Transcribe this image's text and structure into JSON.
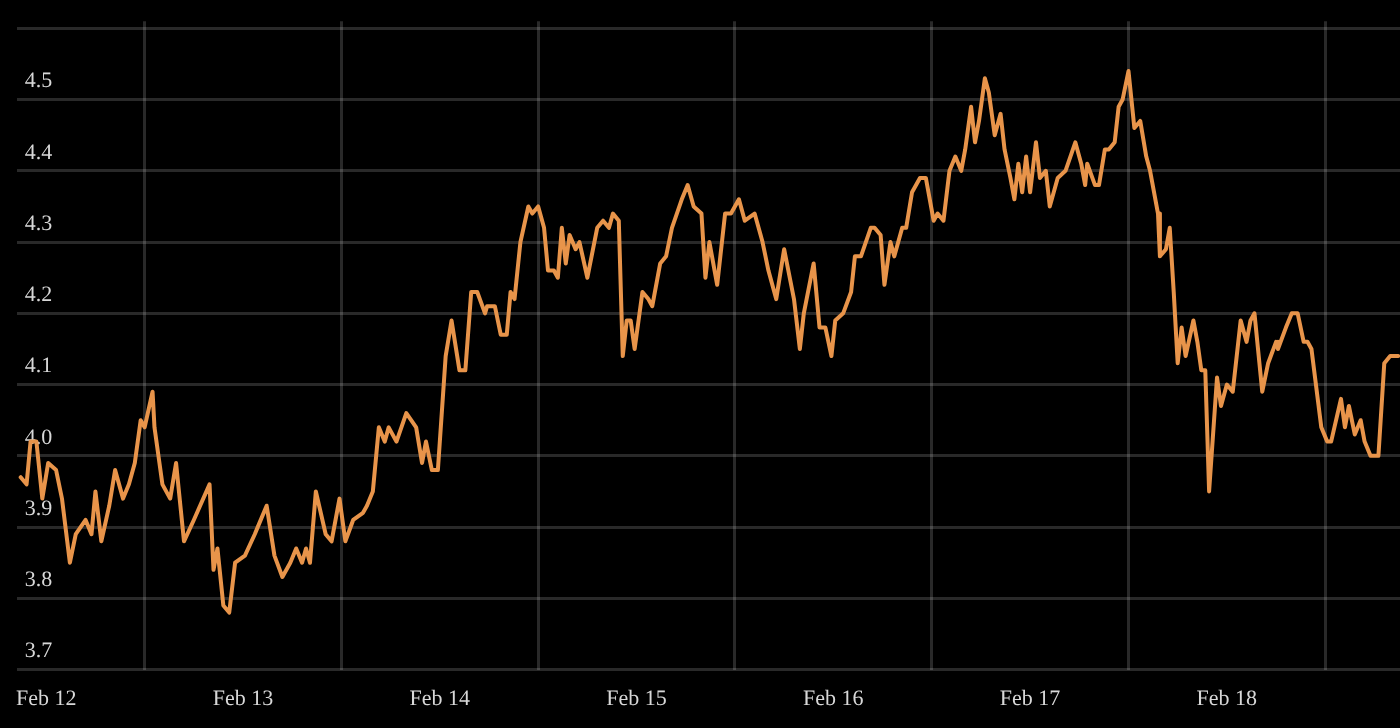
{
  "chart_data": {
    "type": "line",
    "x": [
      "--02-11T20:53",
      "--02-11T21:36",
      "--02-11T22:05",
      "--02-11T22:48",
      "--02-11T23:31",
      "--02-12T00:14",
      "--02-12T01:12",
      "--02-12T01:55",
      "--02-12T02:53",
      "--02-12T03:36",
      "--02-12T04:48",
      "--02-12T05:31",
      "--02-12T06:00",
      "--02-12T06:43",
      "--02-12T07:41",
      "--02-12T08:24",
      "--02-12T09:22",
      "--02-12T10:05",
      "--02-12T10:48",
      "--02-12T11:31",
      "--02-12T12:00",
      "--02-12T12:58",
      "--02-12T13:12",
      "--02-12T14:10",
      "--02-12T15:07",
      "--02-12T15:50",
      "--02-12T16:48",
      "--02-12T18:00",
      "--02-12T19:55",
      "--02-12T20:24",
      "--02-12T20:53",
      "--02-12T21:36",
      "--02-12T22:19",
      "--02-12T23:02",
      "--02-13T00:14",
      "--02-13T01:26",
      "--02-13T02:53",
      "--02-13T03:50",
      "--02-13T04:48",
      "--02-13T05:46",
      "--02-13T06:29",
      "--02-13T07:12",
      "--02-13T07:41",
      "--02-13T08:10",
      "--02-13T08:53",
      "--02-13T10:05",
      "--02-13T10:48",
      "--02-13T11:46",
      "--02-13T12:29",
      "--02-13T13:26",
      "--02-13T14:38",
      "--02-13T15:07",
      "--02-13T15:50",
      "--02-13T16:34",
      "--02-13T17:17",
      "--02-13T17:46",
      "--02-13T18:43",
      "--02-13T19:55",
      "--02-13T21:07",
      "--02-13T21:50",
      "--02-13T22:19",
      "--02-13T23:02",
      "--02-13T23:46",
      "--02-14T00:43",
      "--02-14T01:26",
      "--02-14T02:24",
      "--02-14T03:07",
      "--02-14T03:50",
      "--02-14T04:34",
      "--02-14T05:31",
      "--02-14T05:46",
      "--02-14T06:43",
      "--02-14T07:26",
      "--02-14T08:10",
      "--02-14T08:38",
      "--02-14T09:07",
      "--02-14T09:50",
      "--02-14T10:48",
      "--02-14T11:17",
      "--02-14T12:00",
      "--02-14T12:43",
      "--02-14T13:12",
      "--02-14T13:55",
      "--02-14T14:24",
      "--02-14T14:53",
      "--02-14T15:22",
      "--02-14T15:50",
      "--02-14T16:34",
      "--02-14T17:02",
      "--02-14T18:00",
      "--02-14T19:12",
      "--02-14T19:55",
      "--02-14T20:38",
      "--02-14T21:07",
      "--02-14T21:50",
      "--02-14T22:19",
      "--02-14T22:48",
      "--02-14T23:17",
      "--02-14T23:46",
      "--02-15T00:43",
      "--02-15T01:26",
      "--02-15T01:55",
      "--02-15T02:53",
      "--02-15T03:36",
      "--02-15T04:19",
      "--02-15T05:31",
      "--02-15T06:14",
      "--02-15T06:58",
      "--02-15T07:55",
      "--02-15T08:24",
      "--02-15T08:53",
      "--02-15T09:50",
      "--02-15T10:48",
      "--02-15T11:31",
      "--02-15T12:29",
      "--02-15T13:12",
      "--02-15T14:24",
      "--02-15T15:22",
      "--02-15T16:05",
      "--02-15T17:02",
      "--02-15T18:00",
      "--02-15T19:12",
      "--02-15T19:55",
      "--02-15T20:24",
      "--02-15T21:36",
      "--02-15T22:19",
      "--02-15T23:02",
      "--02-15T23:46",
      "--02-16T00:14",
      "--02-16T01:12",
      "--02-16T02:10",
      "--02-16T02:38",
      "--02-16T03:22",
      "--02-16T04:34",
      "--02-16T05:02",
      "--02-16T05:46",
      "--02-16T06:14",
      "--02-16T06:58",
      "--02-16T07:26",
      "--02-16T08:24",
      "--02-16T08:53",
      "--02-16T09:36",
      "--02-16T10:34",
      "--02-16T11:17",
      "--02-16T12:14",
      "--02-16T12:43",
      "--02-16T13:26",
      "--02-16T14:10",
      "--02-16T14:53",
      "--02-16T15:36",
      "--02-16T16:05",
      "--02-16T16:48",
      "--02-16T17:17",
      "--02-16T17:46",
      "--02-16T18:29",
      "--02-16T18:58",
      "--02-16T19:41",
      "--02-16T20:24",
      "--02-16T20:53",
      "--02-16T21:36",
      "--02-16T22:05",
      "--02-16T22:34",
      "--02-16T23:02",
      "--02-16T23:31",
      "--02-17T00:00",
      "--02-17T00:43",
      "--02-17T01:12",
      "--02-17T01:55",
      "--02-17T02:24",
      "--02-17T03:22",
      "--02-17T04:19",
      "--02-17T05:31",
      "--02-17T06:14",
      "--02-17T06:43",
      "--02-17T06:58",
      "--02-17T07:55",
      "--02-17T08:24",
      "--02-17T09:07",
      "--02-17T09:36",
      "--02-17T10:19",
      "--02-17T10:48",
      "--02-17T11:17",
      "--02-17T12:00",
      "--02-17T12:43",
      "--02-17T13:26",
      "--02-17T14:10",
      "--02-17T14:38",
      "--02-17T15:36",
      "--02-17T15:50",
      "--02-17T16:34",
      "--02-17T17:02",
      "--02-17T17:31",
      "--02-17T18:00",
      "--02-17T18:29",
      "--02-17T18:58",
      "--02-17T19:55",
      "--02-17T20:24",
      "--02-17T20:53",
      "--02-17T21:22",
      "--02-17T21:50",
      "--02-17T22:48",
      "--02-17T23:17",
      "--02-18T00:00",
      "--02-18T00:43",
      "--02-18T01:41",
      "--02-18T02:24",
      "--02-18T02:53",
      "--02-18T03:22",
      "--02-18T04:19",
      "--02-18T05:02",
      "--02-18T06:00",
      "--02-18T06:14",
      "--02-18T07:12",
      "--02-18T07:55",
      "--02-18T08:38",
      "--02-18T09:22",
      "--02-18T09:50",
      "--02-18T10:19",
      "--02-18T11:31",
      "--02-18T12:14",
      "--02-18T12:43",
      "--02-18T13:55",
      "--02-18T14:24",
      "--02-18T14:53",
      "--02-18T15:36",
      "--02-18T16:19",
      "--02-18T16:48",
      "--02-18T17:31",
      "--02-18T18:29",
      "--02-18T19:12",
      "--02-18T19:55",
      "--02-18T20:53"
    ],
    "series": [
      {
        "color": "#e8944a",
        "values": [
          3.97,
          3.96,
          4.02,
          4.02,
          3.94,
          3.99,
          3.98,
          3.94,
          3.85,
          3.89,
          3.91,
          3.89,
          3.95,
          3.88,
          3.93,
          3.98,
          3.94,
          3.96,
          3.99,
          4.05,
          4.04,
          4.09,
          4.04,
          3.96,
          3.94,
          3.99,
          3.88,
          3.91,
          3.96,
          3.84,
          3.87,
          3.79,
          3.78,
          3.85,
          3.86,
          3.89,
          3.93,
          3.86,
          3.83,
          3.85,
          3.87,
          3.85,
          3.87,
          3.85,
          3.95,
          3.89,
          3.88,
          3.94,
          3.88,
          3.91,
          3.92,
          3.93,
          3.95,
          4.04,
          4.02,
          4.04,
          4.02,
          4.06,
          4.04,
          3.99,
          4.02,
          3.98,
          3.98,
          4.14,
          4.19,
          4.12,
          4.12,
          4.23,
          4.23,
          4.2,
          4.21,
          4.21,
          4.17,
          4.17,
          4.23,
          4.22,
          4.3,
          4.35,
          4.34,
          4.35,
          4.32,
          4.26,
          4.26,
          4.25,
          4.32,
          4.27,
          4.31,
          4.29,
          4.3,
          4.25,
          4.32,
          4.33,
          4.32,
          4.34,
          4.33,
          4.14,
          4.19,
          4.19,
          4.15,
          4.23,
          4.22,
          4.21,
          4.27,
          4.28,
          4.32,
          4.36,
          4.38,
          4.35,
          4.34,
          4.25,
          4.3,
          4.24,
          4.34,
          4.34,
          4.36,
          4.33,
          4.34,
          4.3,
          4.26,
          4.22,
          4.29,
          4.22,
          4.15,
          4.2,
          4.27,
          4.18,
          4.18,
          4.14,
          4.19,
          4.2,
          4.23,
          4.28,
          4.28,
          4.32,
          4.32,
          4.31,
          4.24,
          4.3,
          4.28,
          4.32,
          4.32,
          4.37,
          4.39,
          4.39,
          4.33,
          4.34,
          4.33,
          4.4,
          4.42,
          4.4,
          4.43,
          4.49,
          4.44,
          4.47,
          4.53,
          4.51,
          4.45,
          4.48,
          4.43,
          4.39,
          4.36,
          4.41,
          4.37,
          4.42,
          4.37,
          4.44,
          4.39,
          4.4,
          4.35,
          4.39,
          4.4,
          4.44,
          4.41,
          4.38,
          4.41,
          4.38,
          4.38,
          4.43,
          4.43,
          4.44,
          4.49,
          4.5,
          4.54,
          4.46,
          4.47,
          4.42,
          4.4,
          4.34,
          4.28,
          4.29,
          4.32,
          4.23,
          4.13,
          4.18,
          4.14,
          4.19,
          4.16,
          4.12,
          4.12,
          3.95,
          4.11,
          4.07,
          4.1,
          4.09,
          4.19,
          4.16,
          4.19,
          4.2,
          4.09,
          4.13,
          4.16,
          4.15,
          4.18,
          4.2,
          4.2,
          4.16,
          4.16,
          4.15,
          4.04,
          4.02,
          4.02,
          4.08,
          4.04,
          4.07,
          4.03,
          4.05,
          4.02,
          4.0,
          4.0,
          4.13,
          4.14,
          4.14
        ]
      }
    ],
    "xlim": [
      "--02-11T20:24",
      "--02-18T21:07"
    ],
    "xticks": [
      {
        "value": "--02-12",
        "label": "Feb 12"
      },
      {
        "value": "--02-12T12:00",
        "label": null
      },
      {
        "value": "--02-13",
        "label": "Feb 13"
      },
      {
        "value": "--02-13T12:00",
        "label": null
      },
      {
        "value": "--02-14",
        "label": "Feb 14"
      },
      {
        "value": "--02-14T12:00",
        "label": null
      },
      {
        "value": "--02-15",
        "label": "Feb 15"
      },
      {
        "value": "--02-15T12:00",
        "label": null
      },
      {
        "value": "--02-16",
        "label": "Feb 16"
      },
      {
        "value": "--02-16T12:00",
        "label": null
      },
      {
        "value": "--02-17",
        "label": "Feb 17"
      },
      {
        "value": "--02-17T12:00",
        "label": null
      },
      {
        "value": "--02-18",
        "label": "Feb 18"
      },
      {
        "value": "--02-18T12:00",
        "label": null
      }
    ],
    "ylim": [
      3.7,
      4.61
    ],
    "yticks": [
      3.7,
      3.8,
      3.9,
      {
        "value": 4,
        "label": "4.0"
      },
      4.1,
      4.2,
      4.3,
      4.4,
      4.5,
      {
        "value": 4.6,
        "label": null
      }
    ],
    "grid": true,
    "legend": false,
    "marker": "none",
    "line_style": "solid"
  }
}
